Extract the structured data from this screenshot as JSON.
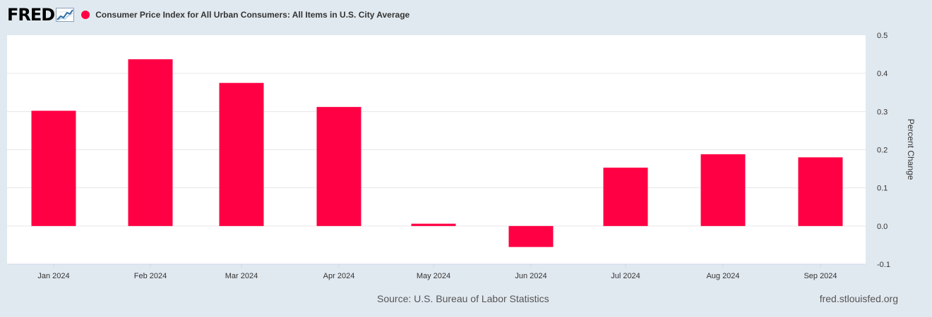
{
  "header": {
    "logo_text": "FRED",
    "series_title": "Consumer Price Index for All Urban Consumers: All Items in U.S. City Average"
  },
  "chart_data": {
    "type": "bar",
    "title": "Consumer Price Index for All Urban Consumers: All Items in U.S. City Average",
    "categories": [
      "Jan 2024",
      "Feb 2024",
      "Mar 2024",
      "Apr 2024",
      "May 2024",
      "Jun 2024",
      "Jul 2024",
      "Aug 2024",
      "Sep 2024"
    ],
    "values": [
      0.302,
      0.437,
      0.375,
      0.312,
      0.006,
      -0.055,
      0.153,
      0.188,
      0.18
    ],
    "series": [
      {
        "name": "Consumer Price Index for All Urban Consumers: All Items in U.S. City Average",
        "color": "#ff0044"
      }
    ],
    "xlabel": "",
    "ylabel": "Percent Change",
    "ylim": [
      -0.1,
      0.5
    ],
    "yticks": [
      "-0.1",
      "0.0",
      "0.1",
      "0.2",
      "0.3",
      "0.4",
      "0.5"
    ],
    "grid": true,
    "legend_position": "top-left"
  },
  "footer": {
    "source": "Source: U.S. Bureau of Labor Statistics",
    "site": "fred.stlouisfed.org"
  },
  "colors": {
    "bar": "#ff0044",
    "background": "#e1e9f0",
    "plot_background": "#ffffff",
    "grid": "#e6e6e6"
  }
}
